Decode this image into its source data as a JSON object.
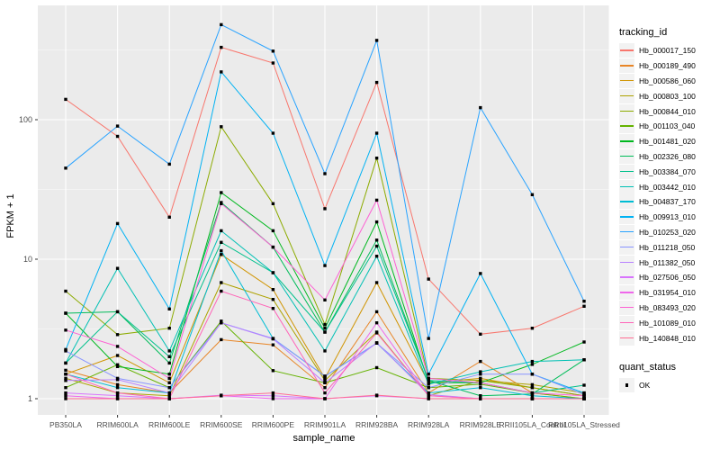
{
  "figure": {
    "y_axis_title": "FPKM + 1",
    "x_axis_title": "sample_name",
    "legend_title": "tracking_id",
    "quant_legend_title": "quant_status",
    "quant_legend_item": "OK"
  },
  "chart_data": {
    "type": "line",
    "title": "",
    "xlabel": "sample_name",
    "ylabel": "FPKM + 1",
    "y_scale": "log10",
    "y_ticks": [
      1,
      10,
      100
    ],
    "ylim": [
      0.9,
      600
    ],
    "grid": true,
    "legend_position": "right",
    "panel_background": "#EBEBEB",
    "grid_color": "#FFFFFF",
    "point_shape": "filled-black-square",
    "quant_status_label": "OK",
    "categories": [
      "PB350LA",
      "RRIM600LA",
      "RRIM600LE",
      "RRIM600SE",
      "RRIM600PE",
      "RRIM901LA",
      "RRIM928BA",
      "RRIM928LA",
      "RRIM928LE",
      "RRII105LA_Control",
      "RRII105LA_Stressed"
    ],
    "series": [
      {
        "name": "Hb_000017_150",
        "color": "#F8766D",
        "values": [
          140,
          76,
          20,
          330,
          255,
          23,
          185,
          7.2,
          2.9,
          3.2,
          4.6
        ]
      },
      {
        "name": "Hb_000189_490",
        "color": "#E88526",
        "values": [
          1.6,
          1.26,
          1.1,
          2.65,
          2.43,
          1.2,
          4.2,
          1.1,
          1.85,
          1.1,
          1.0
        ]
      },
      {
        "name": "Hb_000586_060",
        "color": "#D09400",
        "values": [
          1.5,
          2.04,
          1.3,
          10.8,
          6.06,
          1.4,
          6.8,
          1.3,
          1.4,
          1.2,
          1.05
        ]
      },
      {
        "name": "Hb_000803_100",
        "color": "#AEA200",
        "values": [
          1.4,
          1.1,
          1.05,
          6.8,
          5.15,
          1.35,
          3.0,
          1.05,
          1.35,
          1.26,
          1.1
        ]
      },
      {
        "name": "Hb_000844_010",
        "color": "#8CAB00",
        "values": [
          5.9,
          2.88,
          3.2,
          89,
          25,
          3.4,
          53,
          1.4,
          1.35,
          1.2,
          1.05
        ]
      },
      {
        "name": "Hb_001103_040",
        "color": "#64B200",
        "values": [
          1.2,
          1.75,
          1.2,
          3.6,
          1.59,
          1.3,
          1.67,
          1.2,
          1.27,
          1.1,
          1.0
        ]
      },
      {
        "name": "Hb_001481_020",
        "color": "#00B81F",
        "values": [
          4.1,
          1.7,
          1.5,
          30,
          16,
          3.2,
          18.5,
          1.3,
          1.3,
          1.76,
          2.55
        ]
      },
      {
        "name": "Hb_002326_080",
        "color": "#00BC59",
        "values": [
          4.1,
          4.2,
          1.8,
          25.5,
          12.2,
          3.0,
          13.7,
          1.35,
          1.05,
          1.08,
          1.9
        ]
      },
      {
        "name": "Hb_003384_070",
        "color": "#00C08B",
        "values": [
          1.8,
          4.2,
          2.0,
          13.2,
          8.0,
          3.0,
          12.4,
          1.35,
          1.3,
          1.1,
          1.25
        ]
      },
      {
        "name": "Hb_003442_010",
        "color": "#00C0B4",
        "values": [
          1.8,
          8.6,
          2.2,
          16,
          8.0,
          2.2,
          10.5,
          1.27,
          1.56,
          1.85,
          1.9
        ]
      },
      {
        "name": "Hb_004837_170",
        "color": "#00BDD4",
        "values": [
          1.5,
          1.2,
          1.1,
          11.5,
          2.7,
          1.45,
          2.5,
          1.1,
          1.2,
          1.05,
          1.0
        ]
      },
      {
        "name": "Hb_009913_010",
        "color": "#00B2F3",
        "values": [
          2.25,
          18,
          4.4,
          220,
          80,
          9,
          80,
          1.5,
          7.9,
          1.5,
          1.1
        ]
      },
      {
        "name": "Hb_010253_020",
        "color": "#29A3FF",
        "values": [
          45,
          90,
          48,
          480,
          310,
          41,
          370,
          2.7,
          122,
          29,
          5.0
        ]
      },
      {
        "name": "Hb_011218_050",
        "color": "#8894FF",
        "values": [
          2.2,
          1.4,
          1.2,
          3.5,
          2.7,
          1.45,
          2.5,
          1.2,
          1.5,
          1.5,
          1.07
        ]
      },
      {
        "name": "Hb_011382_050",
        "color": "#B983FF",
        "values": [
          1.35,
          1.37,
          1.1,
          3.5,
          2.68,
          1.3,
          2.52,
          1.07,
          1.0,
          1.0,
          1.0
        ]
      },
      {
        "name": "Hb_027506_050",
        "color": "#D874FD",
        "values": [
          1.1,
          1.05,
          1.0,
          1.06,
          1.05,
          1.0,
          1.05,
          1.0,
          1.0,
          1.0,
          1.0
        ]
      },
      {
        "name": "Hb_031954_010",
        "color": "#EF67EB",
        "values": [
          1.05,
          1.0,
          1.0,
          1.05,
          1.0,
          1.0,
          3.5,
          1.05,
          1.0,
          1.0,
          1.0
        ]
      },
      {
        "name": "Hb_083493_020",
        "color": "#FD61D3",
        "values": [
          3.1,
          2.37,
          1.4,
          25,
          12.2,
          5.1,
          26.5,
          1.4,
          1.3,
          1.1,
          1.05
        ]
      },
      {
        "name": "Hb_101089_010",
        "color": "#FF65B8",
        "values": [
          1.5,
          1.1,
          1.0,
          5.9,
          4.44,
          1.1,
          2.96,
          1.05,
          1.0,
          1.0,
          1.0
        ]
      },
      {
        "name": "Hb_140848_010",
        "color": "#FF6C92",
        "values": [
          1.0,
          1.0,
          1.0,
          1.05,
          1.1,
          1.0,
          1.06,
          1.0,
          1.0,
          1.0,
          1.0
        ]
      }
    ]
  }
}
